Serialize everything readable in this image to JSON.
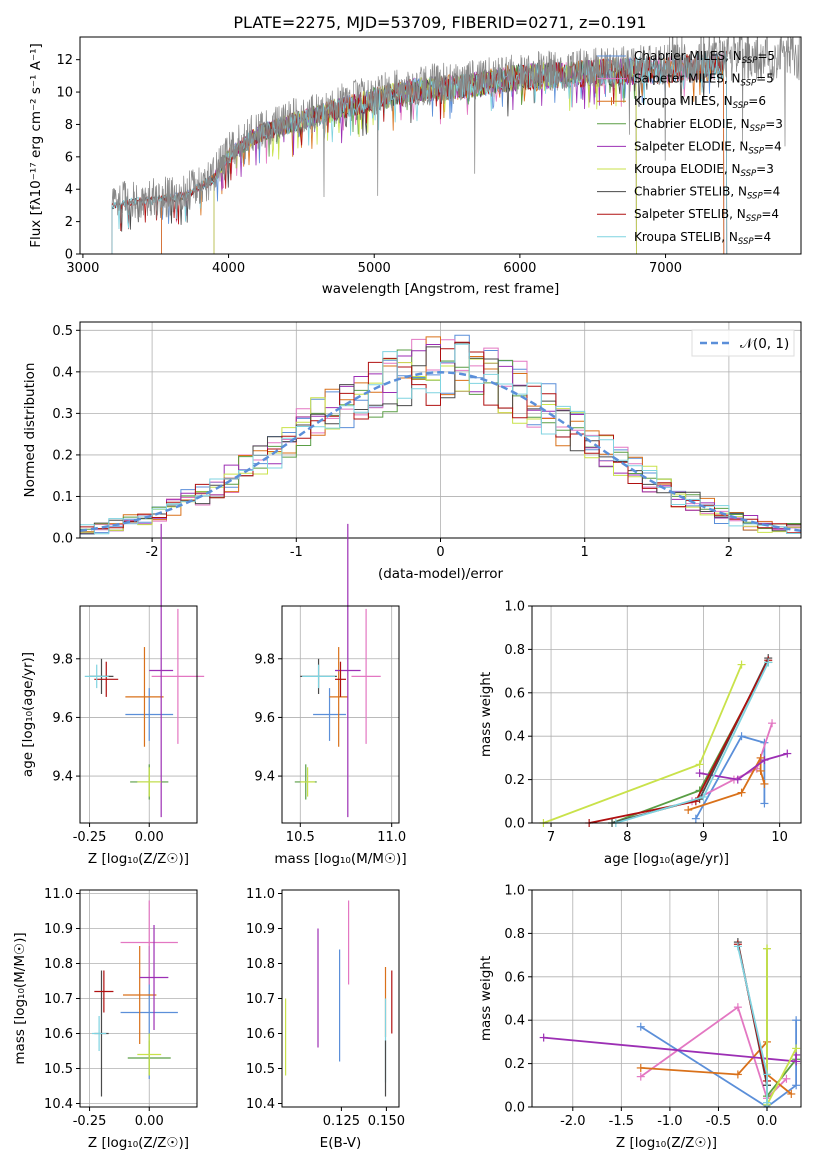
{
  "figure": {
    "title": "PLATE=2275, MJD=53709, FIBERID=0271, z=0.191"
  },
  "chart_data": [
    {
      "id": "spectrum",
      "type": "line",
      "title": "PLATE=2275, MJD=53709, FIBERID=0271, z=0.191",
      "xlabel": "wavelength [Angstrom, rest frame]",
      "ylabel": "Flux [fλ10⁻¹⁷ erg cm⁻² s⁻¹ A⁻¹]",
      "xlim": [
        2980,
        7930
      ],
      "ylim": [
        0,
        13.4
      ],
      "xticks": [
        3000,
        4000,
        5000,
        6000,
        7000
      ],
      "yticks": [
        0,
        2,
        4,
        6,
        8,
        10,
        12
      ],
      "grid": false,
      "legend_position": "top-right",
      "continuum": {
        "x": [
          3200,
          3300,
          3500,
          3700,
          3900,
          4000,
          4200,
          4500,
          4800,
          5000,
          5300,
          5600,
          6000,
          6400,
          6800,
          7200,
          7420
        ],
        "y": [
          3.0,
          3.3,
          3.4,
          3.7,
          4.8,
          6.2,
          7.6,
          8.5,
          9.3,
          9.8,
          10.4,
          10.6,
          11.2,
          11.4,
          11.6,
          11.8,
          12.0
        ]
      },
      "series": [
        {
          "name": "Chabrier MILES, N_SSP=5",
          "label_main": "Chabrier MILES, N",
          "label_sub": "SSP",
          "label_tail": "=5",
          "color": "#5b8fd9",
          "xmin": 3540,
          "xmax": 7400,
          "marker": "none"
        },
        {
          "name": "Salpeter MILES, N_SSP=5",
          "label_main": "Salpeter MILES, N",
          "label_sub": "SSP",
          "label_tail": "=5",
          "color": "#e377c2",
          "xmin": 3540,
          "xmax": 7400,
          "marker": "none"
        },
        {
          "name": "Kroupa MILES, N_SSP=6",
          "label_main": "Kroupa MILES, N",
          "label_sub": "SSP",
          "label_tail": "=6",
          "color": "#d9711a",
          "xmin": 3540,
          "xmax": 7400,
          "marker": "plus"
        },
        {
          "name": "Chabrier ELODIE, N_SSP=3",
          "label_main": "Chabrier ELODIE, N",
          "label_sub": "SSP",
          "label_tail": "=3",
          "color": "#5a9e45",
          "xmin": 3900,
          "xmax": 6800,
          "marker": "none"
        },
        {
          "name": "Salpeter ELODIE, N_SSP=4",
          "label_main": "Salpeter ELODIE, N",
          "label_sub": "SSP",
          "label_tail": "=4",
          "color": "#9c2fb4",
          "xmin": 3900,
          "xmax": 6800,
          "marker": "none"
        },
        {
          "name": "Kroupa ELODIE, N_SSP=3",
          "label_main": "Kroupa ELODIE, N",
          "label_sub": "SSP",
          "label_tail": "=3",
          "color": "#c9e24a",
          "xmin": 3900,
          "xmax": 6800,
          "marker": "none"
        },
        {
          "name": "Chabrier STELIB, N_SSP=4",
          "label_main": "Chabrier STELIB, N",
          "label_sub": "SSP",
          "label_tail": "=4",
          "color": "#4a4a4a",
          "xmin": 3200,
          "xmax": 7420,
          "marker": "none"
        },
        {
          "name": "Salpeter STELIB, N_SSP=4",
          "label_main": "Salpeter STELIB, N",
          "label_sub": "SSP",
          "label_tail": "=4",
          "color": "#b01010",
          "xmin": 3200,
          "xmax": 7420,
          "marker": "none"
        },
        {
          "name": "Kroupa STELIB, N_SSP=4",
          "label_main": "Kroupa STELIB, N",
          "label_sub": "SSP",
          "label_tail": "=4",
          "color": "#7fd3e0",
          "xmin": 3200,
          "xmax": 7420,
          "marker": "none"
        }
      ],
      "data_series": {
        "name": "data",
        "color": "#888888"
      }
    },
    {
      "id": "residuals",
      "type": "line",
      "title": "",
      "xlabel": "(data-model)/error",
      "ylabel": "Normed distribution",
      "xlim": [
        -2.5,
        2.5
      ],
      "ylim": [
        0,
        0.52
      ],
      "xticks": [
        -2,
        -1,
        0,
        1,
        2
      ],
      "yticks": [
        0.0,
        0.1,
        0.2,
        0.3,
        0.4,
        0.5
      ],
      "grid": true,
      "legend_position": "top-right",
      "gaussian": {
        "name": "N(0,1)",
        "label_text": "𝒩(0, 1)",
        "color": "#5b8fd9",
        "mean": 0,
        "sigma": 1
      },
      "histogram_bins": {
        "start": -2.5,
        "width": 0.1,
        "count": 50
      }
    },
    {
      "id": "age-vs-Z",
      "type": "scatter",
      "title": "",
      "xlabel": "Z [log₁₀(Z/Z☉)]",
      "ylabel": "age  [log₁₀(age/yr)]",
      "xlim": [
        -0.29,
        0.2
      ],
      "ylim": [
        9.24,
        9.98
      ],
      "xticks": [
        -0.25,
        0.0
      ],
      "yticks": [
        9.4,
        9.6,
        9.8
      ],
      "grid": true,
      "points": [
        {
          "series": "Chabrier MILES",
          "x": 0.0,
          "y": 9.61,
          "xerr": 0.1,
          "yerr": 0.09
        },
        {
          "series": "Salpeter MILES",
          "x": 0.12,
          "y": 9.74,
          "xerr": 0.11,
          "yerr": 0.23
        },
        {
          "series": "Kroupa MILES",
          "x": -0.02,
          "y": 9.67,
          "xerr": 0.08,
          "yerr": 0.17
        },
        {
          "series": "Chabrier ELODIE",
          "x": 0.0,
          "y": 9.38,
          "xerr": 0.08,
          "yerr": 0.06
        },
        {
          "series": "Salpeter ELODIE",
          "x": 0.05,
          "y": 9.76,
          "xerr": 0.05,
          "yerr": 0.5
        },
        {
          "series": "Kroupa ELODIE",
          "x": 0.0,
          "y": 9.38,
          "xerr": 0.05,
          "yerr": 0.05
        },
        {
          "series": "Chabrier STELIB",
          "x": -0.2,
          "y": 9.74,
          "xerr": 0.05,
          "yerr": 0.06
        },
        {
          "series": "Salpeter STELIB",
          "x": -0.18,
          "y": 9.73,
          "xerr": 0.05,
          "yerr": 0.06
        },
        {
          "series": "Kroupa STELIB",
          "x": -0.22,
          "y": 9.74,
          "xerr": 0.05,
          "yerr": 0.04
        }
      ]
    },
    {
      "id": "age-vs-mass",
      "type": "scatter",
      "title": "",
      "xlabel": "mass [log₁₀(M/M☉)]",
      "ylabel": "",
      "xlim": [
        10.4,
        11.04
      ],
      "ylim": [
        9.24,
        9.98
      ],
      "xticks": [
        10.5,
        11.0
      ],
      "yticks": [
        9.4,
        9.6,
        9.8
      ],
      "grid": true
    },
    {
      "id": "massweight-vs-age",
      "type": "line",
      "title": "",
      "xlabel": "age  [log₁₀(age/yr)]",
      "ylabel": "mass weight",
      "xlim": [
        6.75,
        10.28
      ],
      "ylim": [
        0,
        1.0
      ],
      "xticks": [
        7,
        8,
        9,
        10
      ],
      "yticks": [
        0.0,
        0.2,
        0.4,
        0.6,
        0.8,
        1.0
      ],
      "grid": true,
      "series": [
        {
          "name": "Chabrier MILES",
          "x": [
            8.9,
            9.5,
            9.8,
            9.8
          ],
          "y": [
            0.02,
            0.4,
            0.37,
            0.09
          ]
        },
        {
          "name": "Salpeter MILES",
          "x": [
            8.85,
            9.4,
            9.7,
            9.9
          ],
          "y": [
            0.1,
            0.2,
            0.25,
            0.46
          ]
        },
        {
          "name": "Kroupa MILES",
          "x": [
            8.8,
            9.5,
            9.75,
            9.75,
            9.8
          ],
          "y": [
            0.06,
            0.14,
            0.3,
            0.24,
            0.18
          ]
        },
        {
          "name": "Chabrier ELODIE",
          "x": [
            7.8,
            8.95,
            9.85
          ],
          "y": [
            0.0,
            0.15,
            0.74
          ]
        },
        {
          "name": "Salpeter ELODIE",
          "x": [
            8.95,
            9.45,
            9.8,
            10.1
          ],
          "y": [
            0.23,
            0.2,
            0.29,
            0.32
          ]
        },
        {
          "name": "Kroupa ELODIE",
          "x": [
            6.9,
            8.95,
            9.5
          ],
          "y": [
            0.0,
            0.27,
            0.73
          ]
        },
        {
          "name": "Chabrier STELIB",
          "x": [
            7.8,
            8.95,
            9.85
          ],
          "y": [
            0.0,
            0.11,
            0.76
          ]
        },
        {
          "name": "Salpeter STELIB",
          "x": [
            7.5,
            8.9,
            9.85
          ],
          "y": [
            0.0,
            0.1,
            0.75
          ]
        },
        {
          "name": "Kroupa STELIB",
          "x": [
            7.85,
            9.0,
            9.85
          ],
          "y": [
            0.0,
            0.12,
            0.74
          ]
        }
      ]
    },
    {
      "id": "mass-vs-Z",
      "type": "scatter",
      "title": "",
      "xlabel": "Z [log₁₀(Z/Z☉)]",
      "ylabel": "mass [log₁₀(M/M☉)]",
      "xlim": [
        -0.29,
        0.2
      ],
      "ylim": [
        10.39,
        11.01
      ],
      "xticks": [
        -0.25,
        0.0
      ],
      "yticks": [
        10.4,
        10.5,
        10.6,
        10.7,
        10.8,
        10.9,
        11.0
      ],
      "grid": true,
      "points": [
        {
          "series": "Chabrier MILES",
          "x": 0.0,
          "y": 10.66,
          "xerr": 0.12,
          "yerr": 0.19
        },
        {
          "series": "Salpeter MILES",
          "x": 0.0,
          "y": 10.86,
          "xerr": 0.12,
          "yerr": 0.12
        },
        {
          "series": "Kroupa MILES",
          "x": -0.04,
          "y": 10.71,
          "xerr": 0.07,
          "yerr": 0.14
        },
        {
          "series": "Chabrier ELODIE",
          "x": 0.0,
          "y": 10.53,
          "xerr": 0.09,
          "yerr": 0.05
        },
        {
          "series": "Salpeter ELODIE",
          "x": 0.02,
          "y": 10.76,
          "xerr": 0.06,
          "yerr": 0.15
        },
        {
          "series": "Kroupa ELODIE",
          "x": 0.0,
          "y": 10.54,
          "xerr": 0.05,
          "yerr": 0.06
        },
        {
          "series": "Chabrier STELIB",
          "x": -0.2,
          "y": 10.6,
          "xerr": 0.03,
          "yerr": 0.18
        },
        {
          "series": "Salpeter STELIB",
          "x": -0.19,
          "y": 10.72,
          "xerr": 0.04,
          "yerr": 0.06
        },
        {
          "series": "Kroupa STELIB",
          "x": -0.21,
          "y": 10.6,
          "xerr": 0.03,
          "yerr": 0.05
        }
      ]
    },
    {
      "id": "mass-vs-EBV",
      "type": "scatter",
      "title": "",
      "xlabel": "E(B-V)",
      "ylabel": "",
      "xlim": [
        0.092,
        0.157
      ],
      "ylim": [
        10.39,
        11.01
      ],
      "xticks": [
        0.125,
        0.15
      ],
      "yticks": [
        10.4,
        10.5,
        10.6,
        10.7,
        10.8,
        10.9,
        11.0
      ],
      "grid": false,
      "points": [
        {
          "series": "Kroupa ELODIE",
          "x": 0.094,
          "y": 10.59,
          "yerr": 0.11
        },
        {
          "series": "Salpeter ELODIE",
          "x": 0.112,
          "y": 10.73,
          "yerr": 0.17
        },
        {
          "series": "Chabrier MILES",
          "x": 0.124,
          "y": 10.68,
          "yerr": 0.16
        },
        {
          "series": "Salpeter MILES",
          "x": 0.129,
          "y": 10.86,
          "yerr": 0.12
        },
        {
          "series": "Kroupa MILES",
          "x": 0.1495,
          "y": 10.69,
          "yerr": 0.1
        },
        {
          "series": "Kroupa STELIB",
          "x": 0.1495,
          "y": 10.58,
          "yerr": 0.12
        },
        {
          "series": "Chabrier STELIB",
          "x": 0.1495,
          "y": 10.5,
          "yerr": 0.08
        },
        {
          "series": "Salpeter STELIB",
          "x": 0.153,
          "y": 10.69,
          "yerr": 0.09
        }
      ]
    },
    {
      "id": "massweight-vs-Z",
      "type": "line",
      "title": "",
      "xlabel": "Z [log₁₀(Z/Z☉)]",
      "ylabel": "mass weight",
      "xlim": [
        -2.42,
        0.35
      ],
      "ylim": [
        0,
        1.0
      ],
      "xticks": [
        -2.0,
        -1.5,
        -1.0,
        -0.5,
        0.0
      ],
      "yticks": [
        0.0,
        0.2,
        0.4,
        0.6,
        0.8,
        1.0
      ],
      "grid": true,
      "series": [
        {
          "name": "Chabrier MILES",
          "x": [
            -1.3,
            0.0,
            0.3,
            0.3
          ],
          "y": [
            0.37,
            0.0,
            0.1,
            0.4
          ]
        },
        {
          "name": "Salpeter MILES",
          "x": [
            -1.3,
            -0.3,
            0.0,
            0.2
          ],
          "y": [
            0.14,
            0.46,
            0.04,
            0.13
          ]
        },
        {
          "name": "Kroupa MILES",
          "x": [
            -1.3,
            -0.3,
            0.0,
            0.0,
            0.25
          ],
          "y": [
            0.18,
            0.15,
            0.3,
            0.15,
            0.06
          ]
        },
        {
          "name": "Chabrier ELODIE",
          "x": [
            0.0,
            0.0,
            0.3
          ],
          "y": [
            0.73,
            0.05,
            0.22
          ]
        },
        {
          "name": "Salpeter ELODIE",
          "x": [
            -2.3,
            0.3,
            0.3
          ],
          "y": [
            0.32,
            0.21,
            0.24
          ]
        },
        {
          "name": "Kroupa ELODIE",
          "x": [
            0.0,
            0.0,
            0.3
          ],
          "y": [
            0.73,
            0.01,
            0.27
          ]
        },
        {
          "name": "Chabrier STELIB",
          "x": [
            -0.3,
            0.0,
            0.0
          ],
          "y": [
            0.76,
            0.1,
            0.1
          ]
        },
        {
          "name": "Salpeter STELIB",
          "x": [
            -0.3,
            0.0
          ],
          "y": [
            0.75,
            0.12
          ]
        },
        {
          "name": "Kroupa STELIB",
          "x": [
            -0.3,
            0.0,
            0.0
          ],
          "y": [
            0.74,
            0.15,
            0.02
          ]
        }
      ]
    }
  ]
}
